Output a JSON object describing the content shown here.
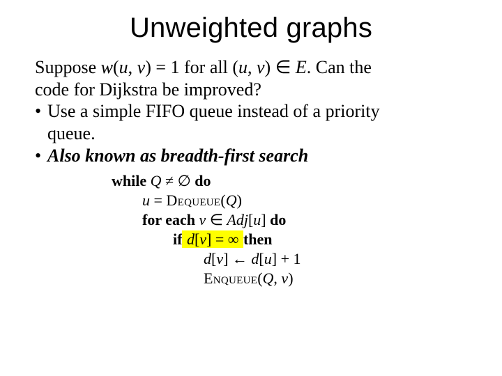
{
  "title": "Unweighted graphs",
  "body": {
    "line1_a": "Suppose ",
    "line1_w": "w",
    "line1_paren_open": "(",
    "line1_u": "u",
    "line1_comma": ", ",
    "line1_v": "v",
    "line1_paren_close": ") = 1 for all (",
    "line1_u2": "u",
    "line1_comma2": ", ",
    "line1_v2": "v",
    "line1_in": ") ",
    "line1_elem": "∈",
    "line1_space": " ",
    "line1_E": "E",
    "line1_tail": ".  Can the",
    "line2": "code for Dijkstra be improved?",
    "bullet1_a": "Use a simple FIFO queue instead of a priority",
    "bullet1_b": "queue.",
    "bullet2": "Also known as breadth-first search"
  },
  "algo": {
    "l1_while": "while",
    "l1_Q": " Q ",
    "l1_neq": "≠ ∅ ",
    "l1_do": "do",
    "l2_u": "u ",
    "l2_eq": "= ",
    "l2_deq": "Dequeue",
    "l2_paren": "(",
    "l2_Q": "Q",
    "l2_close": ")",
    "l3_for": "for each",
    "l3_v": " v ",
    "l3_in": "∈ ",
    "l3_Adj": "Adj",
    "l3_br_open": "[",
    "l3_u": "u",
    "l3_br_close": "] ",
    "l3_do": "do",
    "l4_if": "if",
    "l4_d": " d",
    "l4_br_open": "[",
    "l4_v": "v",
    "l4_br_close": "] = ∞ ",
    "l4_then": "then",
    "l5_d": "d",
    "l5_br_open": "[",
    "l5_v": "v",
    "l5_br_close": "] ",
    "l5_arrow": "← ",
    "l5_d2": "d",
    "l5_br_open2": "[",
    "l5_u": "u",
    "l5_br_close2": "] + 1",
    "l6_enq": "Enqueue",
    "l6_open": "(",
    "l6_Q": "Q",
    "l6_comma": ", ",
    "l6_v": "v",
    "l6_close": ")"
  },
  "colors": {
    "background": "#ffffff",
    "text": "#000000",
    "highlight": "#ffff00"
  },
  "fonts": {
    "title_family": "Arial",
    "title_size_pt": 30,
    "body_family": "Times New Roman",
    "body_size_pt": 20,
    "algo_size_pt": 17
  }
}
